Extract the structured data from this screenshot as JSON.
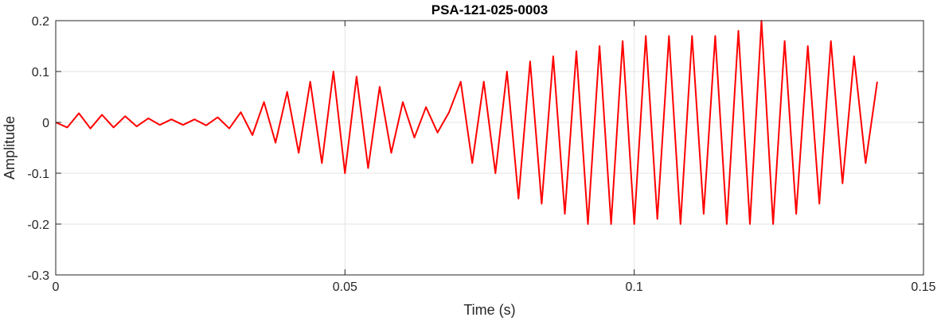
{
  "chart_data": {
    "type": "line",
    "title": "PSA-121-025-0003",
    "xlabel": "Time (s)",
    "ylabel": "Amplitude",
    "xlim": [
      0,
      0.15
    ],
    "ylim": [
      -0.3,
      0.2
    ],
    "xticks": [
      0,
      0.05,
      0.1,
      0.15
    ],
    "xtick_labels": [
      "0",
      "0.05",
      "0.1",
      "0.15"
    ],
    "yticks": [
      -0.3,
      -0.2,
      -0.1,
      0,
      0.1,
      0.2
    ],
    "ytick_labels": [
      "-0.3",
      "-0.2",
      "-0.1",
      "0",
      "0.1",
      "0.2"
    ],
    "grid": true,
    "line_color": "#ff0000",
    "series": [
      {
        "x": [
          0,
          0.002,
          0.004,
          0.006,
          0.008,
          0.01,
          0.012,
          0.014,
          0.016,
          0.018,
          0.02,
          0.022,
          0.024,
          0.026,
          0.028,
          0.03,
          0.032,
          0.034,
          0.036,
          0.038,
          0.04,
          0.042,
          0.044,
          0.046,
          0.048,
          0.05,
          0.052,
          0.054,
          0.056,
          0.058,
          0.06,
          0.062,
          0.064,
          0.066,
          0.068,
          0.07,
          0.072,
          0.074,
          0.076,
          0.078,
          0.08,
          0.082,
          0.084,
          0.086,
          0.088,
          0.09,
          0.092,
          0.094,
          0.096,
          0.098,
          0.1,
          0.102,
          0.104,
          0.106,
          0.108,
          0.11,
          0.112,
          0.114,
          0.116,
          0.118,
          0.12,
          0.122,
          0.124,
          0.126,
          0.128,
          0.13,
          0.132,
          0.134,
          0.136,
          0.138,
          0.14,
          0.142
        ],
        "y": [
          0,
          -0.01,
          0.018,
          -0.012,
          0.015,
          -0.01,
          0.012,
          -0.008,
          0.008,
          -0.005,
          0.006,
          -0.005,
          0.006,
          -0.006,
          0.01,
          -0.012,
          0.02,
          -0.025,
          0.04,
          -0.04,
          0.06,
          -0.06,
          0.08,
          -0.08,
          0.1,
          -0.1,
          0.09,
          -0.09,
          0.07,
          -0.06,
          0.04,
          -0.03,
          0.03,
          -0.02,
          0.02,
          0.08,
          -0.08,
          0.08,
          -0.1,
          0.1,
          -0.15,
          0.12,
          -0.16,
          0.13,
          -0.18,
          0.14,
          -0.2,
          0.15,
          -0.2,
          0.16,
          -0.2,
          0.17,
          -0.19,
          0.17,
          -0.2,
          0.17,
          -0.18,
          0.17,
          -0.2,
          0.18,
          -0.2,
          0.2,
          -0.2,
          0.16,
          -0.18,
          0.15,
          -0.16,
          0.16,
          -0.12,
          0.13,
          -0.08,
          0.08
        ]
      }
    ]
  }
}
